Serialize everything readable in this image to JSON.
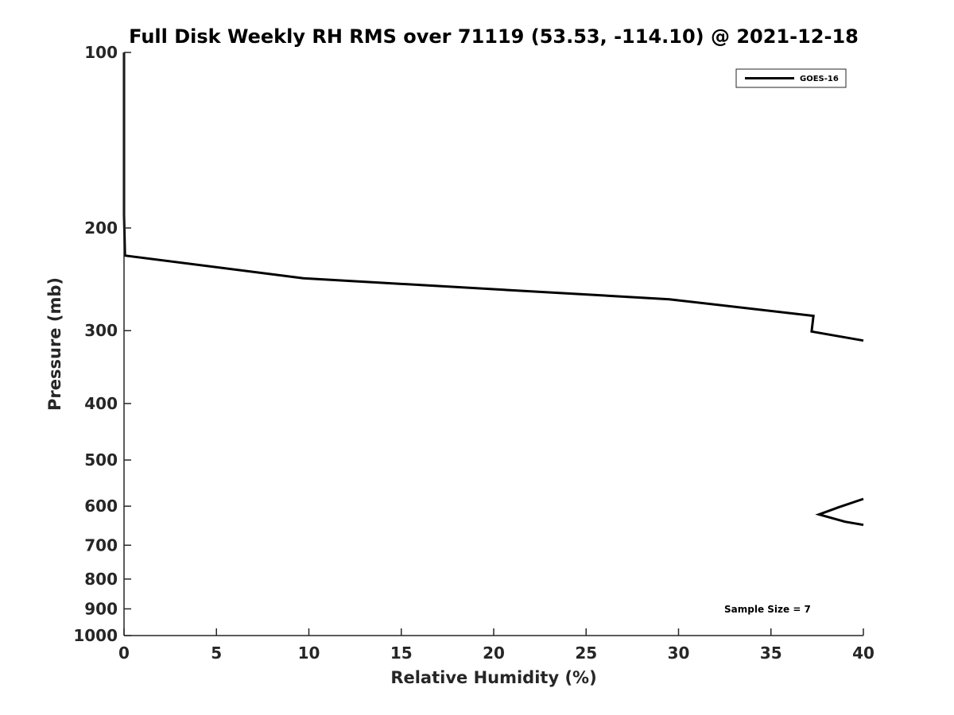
{
  "chart_data": {
    "type": "line",
    "title": "Full Disk Weekly RH RMS over 71119 (53.53, -114.10) @ 2021-12-18",
    "xlabel": "Relative Humidity (%)",
    "ylabel": "Pressure (mb)",
    "xlim": [
      0,
      40
    ],
    "ylim": [
      1000,
      100
    ],
    "yscale": "log",
    "xticks": [
      0,
      5,
      10,
      15,
      20,
      25,
      30,
      35,
      40
    ],
    "xtick_labels": [
      "0",
      "5",
      "10",
      "15",
      "20",
      "25",
      "30",
      "35",
      "40"
    ],
    "yticks": [
      100,
      200,
      300,
      400,
      500,
      600,
      700,
      800,
      900,
      1000
    ],
    "ytick_labels": [
      "100",
      "200",
      "300",
      "400",
      "500",
      "600",
      "700",
      "800",
      "900",
      "1000"
    ],
    "grid": false,
    "legend_location": "top-right",
    "series": [
      {
        "name": "GOES-16",
        "color": "#000000",
        "segments": [
          [
            {
              "x": 0,
              "y": 100
            },
            {
              "x": 0,
              "y": 190
            },
            {
              "x": 0.05,
              "y": 223
            },
            {
              "x": 9.7,
              "y": 244
            },
            {
              "x": 29.5,
              "y": 265
            },
            {
              "x": 37.3,
              "y": 283
            },
            {
              "x": 37.2,
              "y": 301
            },
            {
              "x": 40,
              "y": 312
            }
          ],
          [
            {
              "x": 40,
              "y": 583
            },
            {
              "x": 38.7,
              "y": 602
            },
            {
              "x": 37.6,
              "y": 620
            },
            {
              "x": 39,
              "y": 638
            },
            {
              "x": 40,
              "y": 646
            }
          ]
        ]
      }
    ],
    "annotations": [
      "Sample Size = 7"
    ]
  }
}
